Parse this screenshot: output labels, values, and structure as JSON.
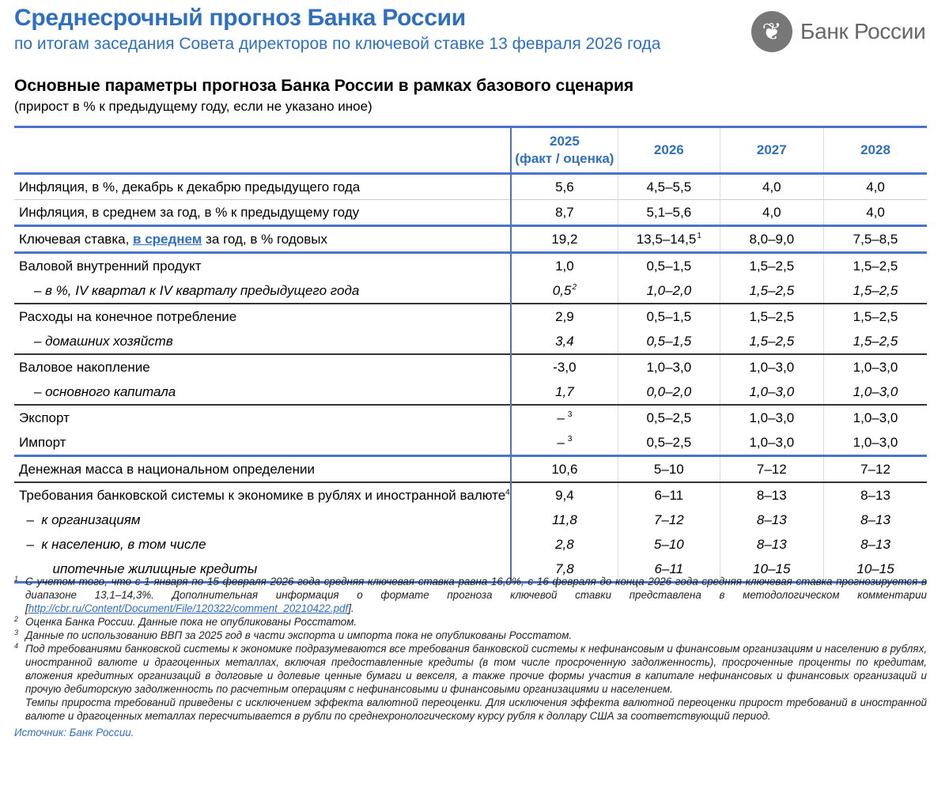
{
  "header": {
    "title": "Среднесрочный прогноз Банка России",
    "subtitle": "по итогам заседания Совета директоров по ключевой ставке 13 февраля 2026 года",
    "logo_text": "Банк России"
  },
  "table_title": "Основные параметры прогноза Банка России в рамках базового сценария",
  "table_subtitle": "(прирост в % к предыдущему году, если не указано иное)",
  "columns": [
    {
      "year": "2025",
      "note": "(факт / оценка)"
    },
    {
      "year": "2026"
    },
    {
      "year": "2027"
    },
    {
      "year": "2028"
    }
  ],
  "rows": [
    {
      "label": "Инфляция, в %, декабрь к декабрю предыдущего года",
      "values": [
        {
          "v": "5,6"
        },
        {
          "v": "4,5–5,5"
        },
        {
          "v": "4,0"
        },
        {
          "v": "4,0"
        }
      ],
      "border": "none"
    },
    {
      "label": "Инфляция, в среднем за год, в % к предыдущему году",
      "values": [
        {
          "v": "8,7"
        },
        {
          "v": "5,1–5,6"
        },
        {
          "v": "4,0"
        },
        {
          "v": "4,0"
        }
      ],
      "border": "thin"
    },
    {
      "label_before": "Ключевая ставка, ",
      "label_link": "в среднем",
      "label_after": " за год, в % годовых",
      "values": [
        {
          "v": "19,2"
        },
        {
          "v": "13,5–14,5",
          "sup": "1"
        },
        {
          "v": "8,0–9,0"
        },
        {
          "v": "7,5–8,5"
        }
      ],
      "border": "blue"
    },
    {
      "label": "Валовой внутренний продукт",
      "values": [
        {
          "v": "1,0"
        },
        {
          "v": "0,5–1,5"
        },
        {
          "v": "1,5–2,5"
        },
        {
          "v": "1,5–2,5"
        }
      ],
      "border": "blue"
    },
    {
      "label": "    – в %, IV квартал к IV кварталу предыдущего года",
      "italic": true,
      "values": [
        {
          "v": "0,5",
          "sup": "2"
        },
        {
          "v": "1,0–2,0"
        },
        {
          "v": "1,5–2,5"
        },
        {
          "v": "1,5–2,5"
        }
      ],
      "border": "none"
    },
    {
      "label": "Расходы на конечное потребление",
      "values": [
        {
          "v": "2,9"
        },
        {
          "v": "0,5–1,5"
        },
        {
          "v": "1,5–2,5"
        },
        {
          "v": "1,5–2,5"
        }
      ],
      "border": "dark"
    },
    {
      "label": "    – домашних хозяйств",
      "italic": true,
      "values": [
        {
          "v": "3,4"
        },
        {
          "v": "0,5–1,5"
        },
        {
          "v": "1,5–2,5"
        },
        {
          "v": "1,5–2,5"
        }
      ],
      "border": "none"
    },
    {
      "label": "Валовое накопление",
      "values": [
        {
          "v": "-3,0"
        },
        {
          "v": "1,0–3,0"
        },
        {
          "v": "1,0–3,0"
        },
        {
          "v": "1,0–3,0"
        }
      ],
      "border": "dark"
    },
    {
      "label": "    – основного капитала",
      "italic": true,
      "values": [
        {
          "v": "1,7"
        },
        {
          "v": "0,0–2,0"
        },
        {
          "v": "1,0–3,0"
        },
        {
          "v": "1,0–3,0"
        }
      ],
      "border": "none"
    },
    {
      "label": "Экспорт",
      "values": [
        {
          "v": "–",
          "sup": "3"
        },
        {
          "v": "0,5–2,5"
        },
        {
          "v": "1,0–3,0"
        },
        {
          "v": "1,0–3,0"
        }
      ],
      "border": "dark"
    },
    {
      "label": "Импорт",
      "values": [
        {
          "v": "–",
          "sup": "3"
        },
        {
          "v": "0,5–2,5"
        },
        {
          "v": "1,0–3,0"
        },
        {
          "v": "1,0–3,0"
        }
      ],
      "border": "none"
    },
    {
      "label": "Денежная масса в национальном определении",
      "values": [
        {
          "v": "10,6"
        },
        {
          "v": "5–10"
        },
        {
          "v": "7–12"
        },
        {
          "v": "7–12"
        }
      ],
      "border": "blue"
    },
    {
      "label": "Требования банковской системы к экономике в рублях и иностранной валюте",
      "label_sup": "4",
      "values": [
        {
          "v": "9,4"
        },
        {
          "v": "6–11"
        },
        {
          "v": "8–13"
        },
        {
          "v": "8–13"
        }
      ],
      "border": "dark"
    },
    {
      "label": "  –  к организациям",
      "italic": true,
      "values": [
        {
          "v": "11,8"
        },
        {
          "v": "7–12"
        },
        {
          "v": "8–13"
        },
        {
          "v": "8–13"
        }
      ],
      "border": "none"
    },
    {
      "label": "  –  к населению, в том числе",
      "italic": true,
      "values": [
        {
          "v": "2,8"
        },
        {
          "v": "5–10"
        },
        {
          "v": "8–13"
        },
        {
          "v": "8–13"
        }
      ],
      "border": "none"
    },
    {
      "label": "         ипотечные жилищные кредиты",
      "italic": true,
      "values": [
        {
          "v": "7,8"
        },
        {
          "v": "6–11"
        },
        {
          "v": "10–15"
        },
        {
          "v": "10–15"
        }
      ],
      "border": "none"
    }
  ],
  "footnotes": [
    {
      "n": "1",
      "text": "С учетом того, что с 1 января по 15 февраля 2026 года средняя ключевая ставка равна 16,0%, с 16 февраля до конца 2026 года средняя ключевая ставка прогнозируется в диапазоне 13,1–14,3%. Дополнительная информация о формате прогноза ключевой ставки представлена в методологическом комментарии [",
      "link": "http://cbr.ru/Content/Document/File/120322/comment_20210422.pdf",
      "after": "]."
    },
    {
      "n": "2",
      "text": "Оценка Банка России. Данные пока не опубликованы Росстатом."
    },
    {
      "n": "3",
      "text": "Данные по использованию ВВП за 2025 год в части экспорта и импорта пока не опубликованы Росстатом."
    },
    {
      "n": "4",
      "text": "Под требованиями банковской системы к экономике подразумеваются все требования банковской системы к нефинансовым и финансовым организациям и населению в рублях, иностранной валюте и драгоценных металлах, включая предоставленные кредиты (в том числе просроченную задолженность), просроченные проценты по кредитам, вложения кредитных организаций в долговые и долевые ценные бумаги и векселя, а также прочие формы участия в капитале нефинансовых и финансовых организаций и прочую дебиторскую задолженность по расчетным операциям с нефинансовыми и финансовыми организациями и населением."
    },
    {
      "n": "",
      "text": "Темпы прироста требований приведены с исключением эффекта валютной переоценки. Для исключения эффекта валютной переоценки прирост требований в иностранной валюте и драгоценных металлах пересчитывается в рубли по среднехронологическому курсу рубля к доллару США за соответствующий период."
    }
  ],
  "source": "Источник: Банк России.",
  "colors": {
    "accent": "#2f6fc0",
    "rule": "#4a74c9"
  }
}
